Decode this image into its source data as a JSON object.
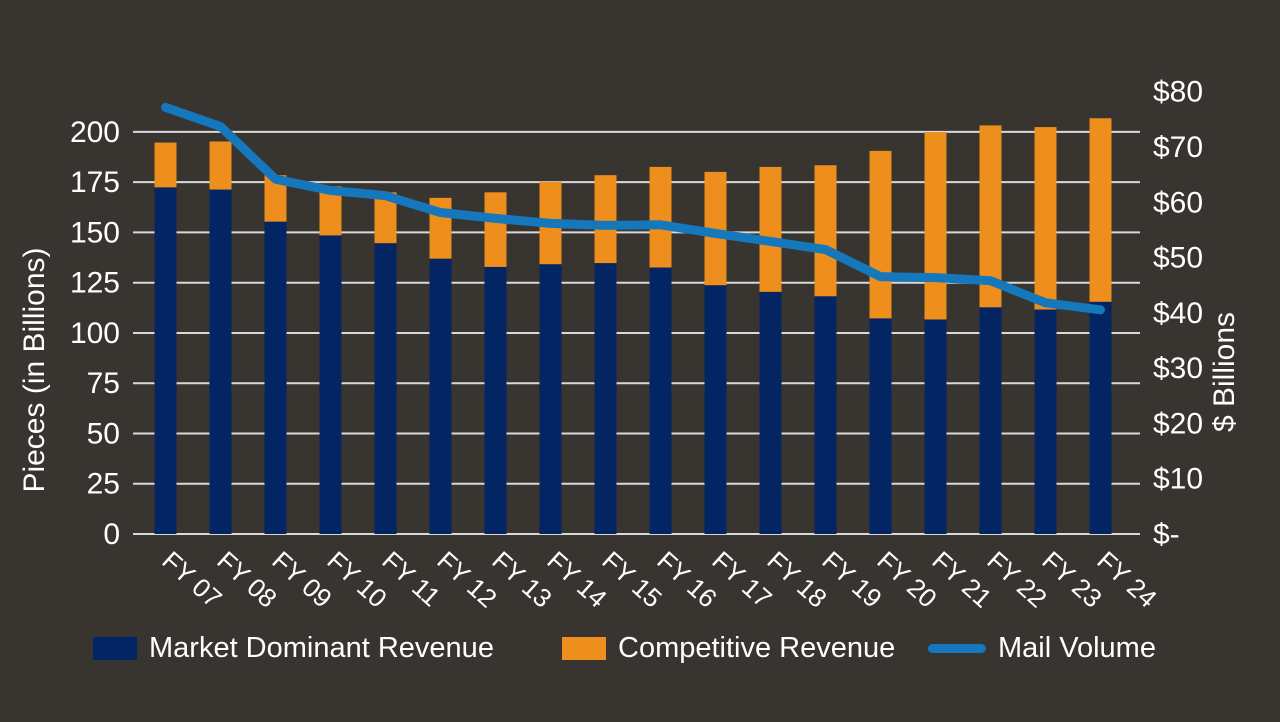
{
  "chart_data": {
    "type": "bar",
    "subtype": "stacked-bar-with-line-combo",
    "categories": [
      "FY 07",
      "FY 08",
      "FY 09",
      "FY 10",
      "FY 11",
      "FY 12",
      "FY 13",
      "FY 14",
      "FY 15",
      "FY 16",
      "FY 17",
      "FY 18",
      "FY 19",
      "FY 20",
      "FY 21",
      "FY 22",
      "FY 23",
      "FY 24"
    ],
    "series": [
      {
        "name": "Market Dominant Revenue",
        "type": "bar",
        "stack": "revenue",
        "axis": "right",
        "color": "#042563",
        "values": [
          62.7,
          62.3,
          56.5,
          54.0,
          52.6,
          49.8,
          48.3,
          48.8,
          49.0,
          48.2,
          45.0,
          43.8,
          43.0,
          39.0,
          38.8,
          41.0,
          40.6,
          42.0
        ]
      },
      {
        "name": "Competitive Revenue",
        "type": "bar",
        "stack": "revenue",
        "axis": "right",
        "color": "#ee8e1c",
        "values": [
          8.1,
          8.7,
          8.4,
          8.9,
          9.2,
          11.0,
          13.5,
          14.9,
          15.9,
          18.2,
          20.5,
          22.6,
          23.7,
          30.3,
          33.9,
          32.9,
          33.0,
          33.2
        ]
      },
      {
        "name": "Mail Volume",
        "type": "line",
        "axis": "left",
        "color": "#1577bc",
        "values": [
          212.2,
          202.7,
          176.5,
          170.9,
          168.3,
          159.9,
          157.0,
          154.5,
          153.5,
          153.8,
          149.5,
          145.5,
          141.5,
          128.0,
          127.5,
          126.0,
          115.0,
          111.5
        ]
      }
    ],
    "left_axis": {
      "title": "Pieces (in Billions)",
      "ticks": [
        0,
        25,
        50,
        75,
        100,
        125,
        150,
        175,
        200
      ],
      "range": [
        0,
        220
      ],
      "grid": true
    },
    "right_axis": {
      "title": "$ Billions",
      "tick_labels": [
        "$-",
        "$10",
        "$20",
        "$30",
        "$40",
        "$50",
        "$60",
        "$70",
        "$80"
      ],
      "tick_values": [
        0,
        10,
        20,
        30,
        40,
        50,
        60,
        70,
        80
      ],
      "range": [
        0,
        80
      ],
      "grid": false
    },
    "legend": {
      "position": "bottom"
    },
    "style": {
      "background": "#383430",
      "gridline_color": "#d9d9d9",
      "text_color": "#ffffff",
      "line_width": 9
    }
  }
}
